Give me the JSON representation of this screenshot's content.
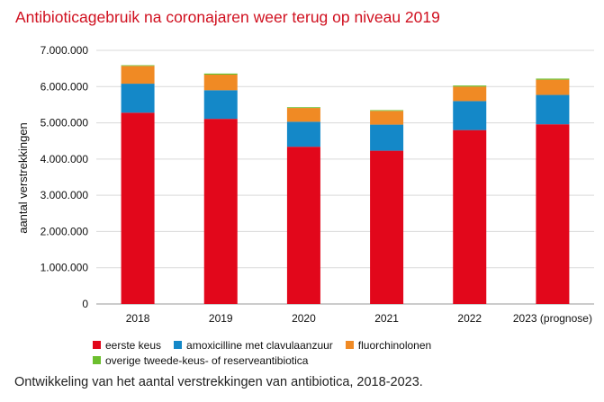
{
  "title": "Antibioticagebruik na coronajaren weer terug op niveau 2019",
  "caption": "Ontwikkeling van het aantal verstrekkingen van antibiotica, 2018-2023.",
  "chart_data": {
    "type": "bar",
    "stacked": true,
    "categories": [
      "2018",
      "2019",
      "2020",
      "2021",
      "2022",
      "2023 (prognose)"
    ],
    "series": [
      {
        "name": "eerste keus",
        "color": "#e2071b",
        "values": [
          5280000,
          5110000,
          4340000,
          4230000,
          4800000,
          4960000
        ]
      },
      {
        "name": "amoxicilline met clavulaanzuur",
        "color": "#1488c8",
        "values": [
          800000,
          790000,
          690000,
          720000,
          800000,
          810000
        ]
      },
      {
        "name": "fluorchinolonen",
        "color": "#f08a24",
        "values": [
          490000,
          430000,
          380000,
          380000,
          400000,
          420000
        ]
      },
      {
        "name": "overige tweede-keus- of reserveantibiotica",
        "color": "#6cbf2e",
        "values": [
          20000,
          30000,
          20000,
          20000,
          30000,
          30000
        ]
      }
    ],
    "ylabel": "aantal verstrekkingen",
    "ylim": [
      0,
      7000000
    ],
    "yticks": [
      "0",
      "1.000.000",
      "2.000.000",
      "3.000.000",
      "4.000.000",
      "5.000.000",
      "6.000.000",
      "7.000.000"
    ],
    "grid": true,
    "legend_position": "bottom"
  }
}
